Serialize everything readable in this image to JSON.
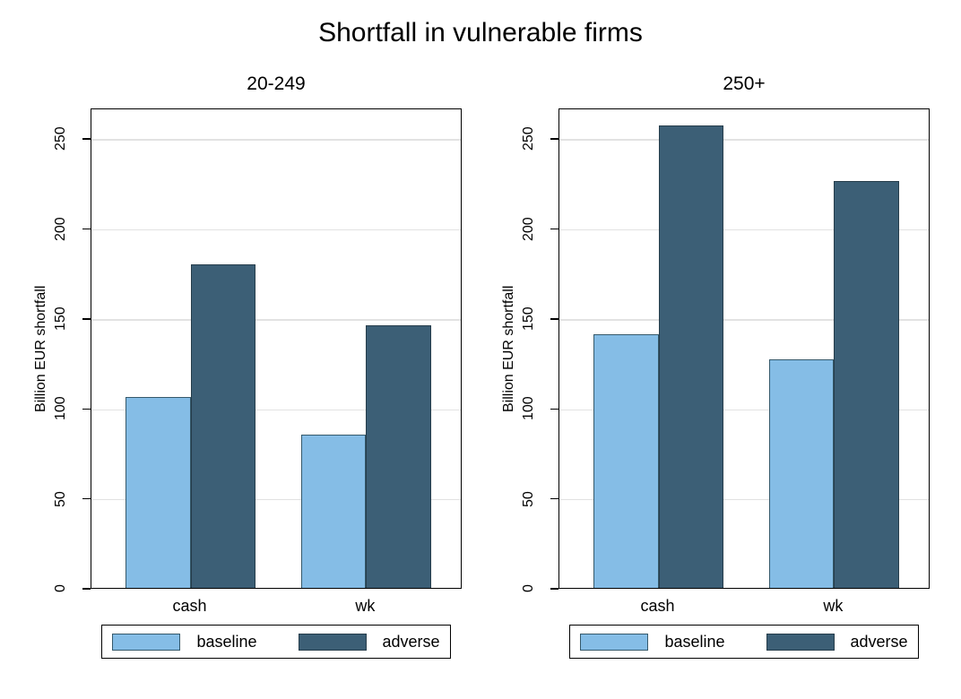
{
  "title": "Shortfall in vulnerable firms",
  "colors": {
    "baseline_fill": "#85bde6",
    "baseline_border": "#35596b",
    "adverse_fill": "#3c5f76",
    "adverse_border": "#263d4b",
    "gridline": "#e2e2e2",
    "axis": "#000000",
    "text": "#000000"
  },
  "chart_data": [
    {
      "type": "bar",
      "title": "20-249",
      "categories": [
        "cash",
        "wk"
      ],
      "series": [
        {
          "name": "baseline",
          "color": "#85bde6",
          "border": "#35596b",
          "values": [
            106,
            85
          ]
        },
        {
          "name": "adverse",
          "color": "#3c5f76",
          "border": "#263d4b",
          "values": [
            180,
            146
          ]
        }
      ],
      "xlabel": "",
      "ylabel": "Billion EUR shortfall",
      "yticks": [
        0,
        50,
        100,
        150,
        200,
        250
      ],
      "ylim": [
        0,
        267
      ],
      "grid": true,
      "legend_position": "bottom",
      "legend_labels": [
        "baseline",
        "adverse"
      ]
    },
    {
      "type": "bar",
      "title": "250+",
      "categories": [
        "cash",
        "wk"
      ],
      "series": [
        {
          "name": "baseline",
          "color": "#85bde6",
          "border": "#35596b",
          "values": [
            141,
            127
          ]
        },
        {
          "name": "adverse",
          "color": "#3c5f76",
          "border": "#263d4b",
          "values": [
            257,
            226
          ]
        }
      ],
      "xlabel": "",
      "ylabel": "Billion EUR shortfall",
      "yticks": [
        0,
        50,
        100,
        150,
        200,
        250
      ],
      "ylim": [
        0,
        267
      ],
      "grid": true,
      "legend_position": "bottom",
      "legend_labels": [
        "baseline",
        "adverse"
      ]
    }
  ]
}
